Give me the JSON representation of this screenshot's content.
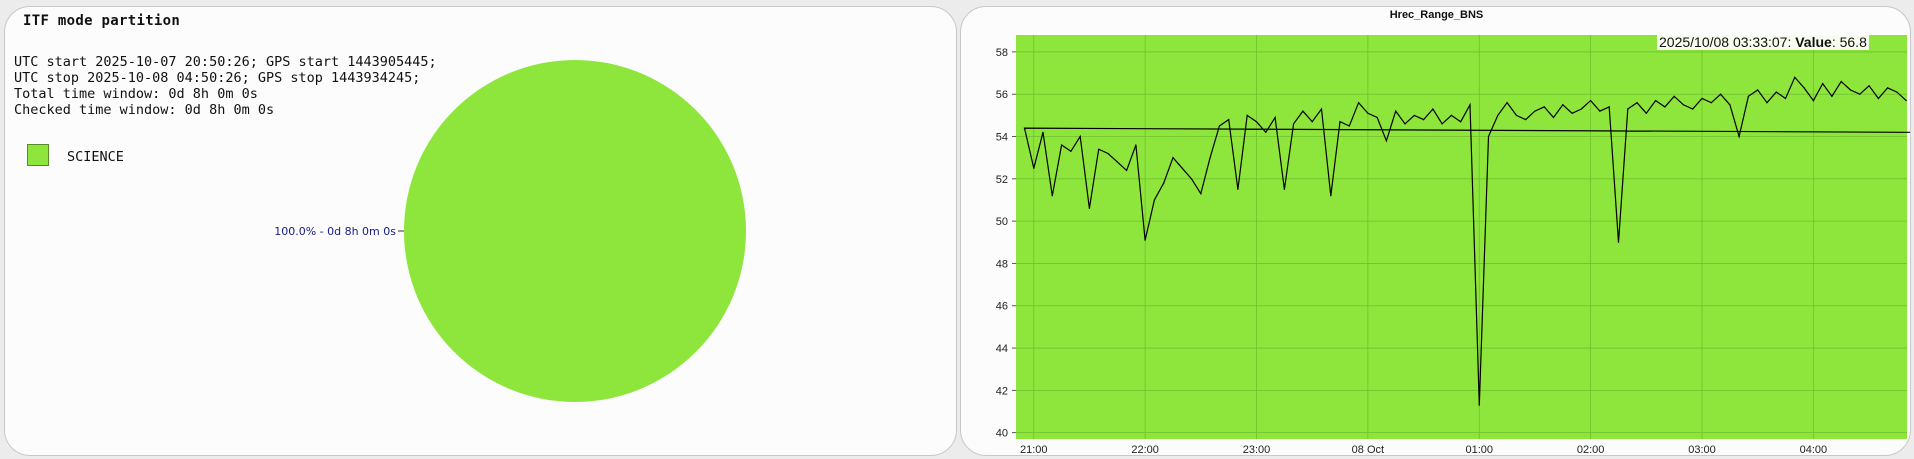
{
  "left_panel": {
    "title": "ITF mode partition",
    "info": [
      "UTC start 2025-10-07 20:50:26; GPS start 1443905445;",
      "UTC stop 2025-10-08 04:50:26; GPS stop 1443934245;",
      "Total time window: 0d 8h 0m 0s",
      "Checked time window: 0d 8h 0m 0s"
    ],
    "legend": [
      {
        "label": "SCIENCE",
        "color": "#8ee63c"
      }
    ]
  },
  "right_panel": {
    "title": "Hrec_Range_BNS",
    "hover": {
      "time": "2025/10/08 03:33:07:",
      "value_label": "Value",
      "value": "56.8"
    }
  },
  "chart_data": [
    {
      "type": "pie",
      "slices": [
        {
          "label": "SCIENCE",
          "percent": 100.0,
          "duration": "0d 8h 0m 0s",
          "color": "#8ee63c"
        }
      ],
      "slice_labels": [
        "100.0% - 0d 8h 0m 0s"
      ]
    },
    {
      "type": "line",
      "title": "Hrec_Range_BNS",
      "background_color": "#8ee63c",
      "line_color": "#000000",
      "grid": true,
      "x_range": [
        "2025-10-07 20:50:26",
        "2025-10-08 04:50:26"
      ],
      "ylim": [
        39.7,
        58.8
      ],
      "y_ticks": [
        40,
        42,
        44,
        46,
        48,
        50,
        52,
        54,
        56,
        58
      ],
      "x_ticks": [
        {
          "t": "2025-10-07 21:00",
          "label": "21:00"
        },
        {
          "t": "2025-10-07 22:00",
          "label": "22:00"
        },
        {
          "t": "2025-10-07 23:00",
          "label": "23:00"
        },
        {
          "t": "2025-10-08 00:00",
          "label": "08 Oct"
        },
        {
          "t": "2025-10-08 01:00",
          "label": "01:00"
        },
        {
          "t": "2025-10-08 02:00",
          "label": "02:00"
        },
        {
          "t": "2025-10-08 03:00",
          "label": "03:00"
        },
        {
          "t": "2025-10-08 04:00",
          "label": "04:00"
        }
      ],
      "series": [
        {
          "x": [
            "20:50",
            "20:55",
            "21:00",
            "21:05",
            "21:10",
            "21:15",
            "21:20",
            "21:25",
            "21:30",
            "21:35",
            "21:40",
            "21:45",
            "21:50",
            "21:55",
            "22:00",
            "22:05",
            "22:10",
            "22:15",
            "22:20",
            "22:25",
            "22:30",
            "22:35",
            "22:40",
            "22:45",
            "22:50",
            "22:55",
            "23:00",
            "23:05",
            "23:10",
            "23:15",
            "23:20",
            "23:25",
            "23:30",
            "23:35",
            "23:40",
            "23:45",
            "23:50",
            "23:55",
            "00:00",
            "00:05",
            "00:10",
            "00:15",
            "00:20",
            "00:25",
            "00:30",
            "00:35",
            "00:40",
            "00:45",
            "00:50",
            "00:55",
            "01:00",
            "01:05",
            "01:10",
            "01:15",
            "01:20",
            "01:25",
            "01:30",
            "01:35",
            "01:40",
            "01:45",
            "01:50",
            "01:55",
            "02:00",
            "02:05",
            "02:10",
            "02:15",
            "02:20",
            "02:25",
            "02:30",
            "02:35",
            "02:40",
            "02:45",
            "02:50",
            "02:55",
            "03:00",
            "03:05",
            "03:10",
            "03:15",
            "03:20",
            "03:25",
            "03:30",
            "03:35",
            "03:40",
            "03:45",
            "03:50",
            "03:55",
            "04:00",
            "04:05",
            "04:10",
            "04:15",
            "04:20",
            "04:25",
            "04:30",
            "04:35",
            "04:40",
            "04:45",
            "04:50"
          ],
          "y": [
            53.8,
            54.4,
            52.5,
            54.2,
            51.2,
            53.6,
            53.3,
            54.0,
            50.6,
            53.4,
            53.2,
            52.8,
            52.4,
            53.6,
            49.1,
            51.0,
            51.8,
            53.0,
            52.5,
            52.0,
            51.3,
            53.0,
            54.5,
            54.8,
            51.5,
            55.0,
            54.7,
            54.2,
            54.9,
            51.5,
            54.6,
            55.2,
            54.7,
            55.3,
            51.2,
            54.7,
            54.5,
            55.6,
            55.1,
            54.9,
            53.8,
            55.2,
            54.6,
            55.0,
            54.8,
            55.3,
            54.6,
            55.0,
            54.7,
            55.5,
            41.3,
            54.0,
            55.0,
            55.6,
            55.0,
            54.8,
            55.2,
            55.4,
            54.9,
            55.5,
            55.1,
            55.3,
            55.7,
            55.2,
            55.4,
            49.0,
            55.3,
            55.6,
            55.1,
            55.7,
            55.4,
            55.9,
            55.5,
            55.3,
            55.8,
            55.6,
            56.0,
            55.5,
            54.0,
            55.9,
            56.2,
            55.6,
            56.1,
            55.8,
            56.8,
            56.3,
            55.7,
            56.5,
            55.9,
            56.6,
            56.2,
            56.0,
            56.4,
            55.8,
            56.3,
            56.1,
            55.7
          ]
        }
      ]
    }
  ]
}
